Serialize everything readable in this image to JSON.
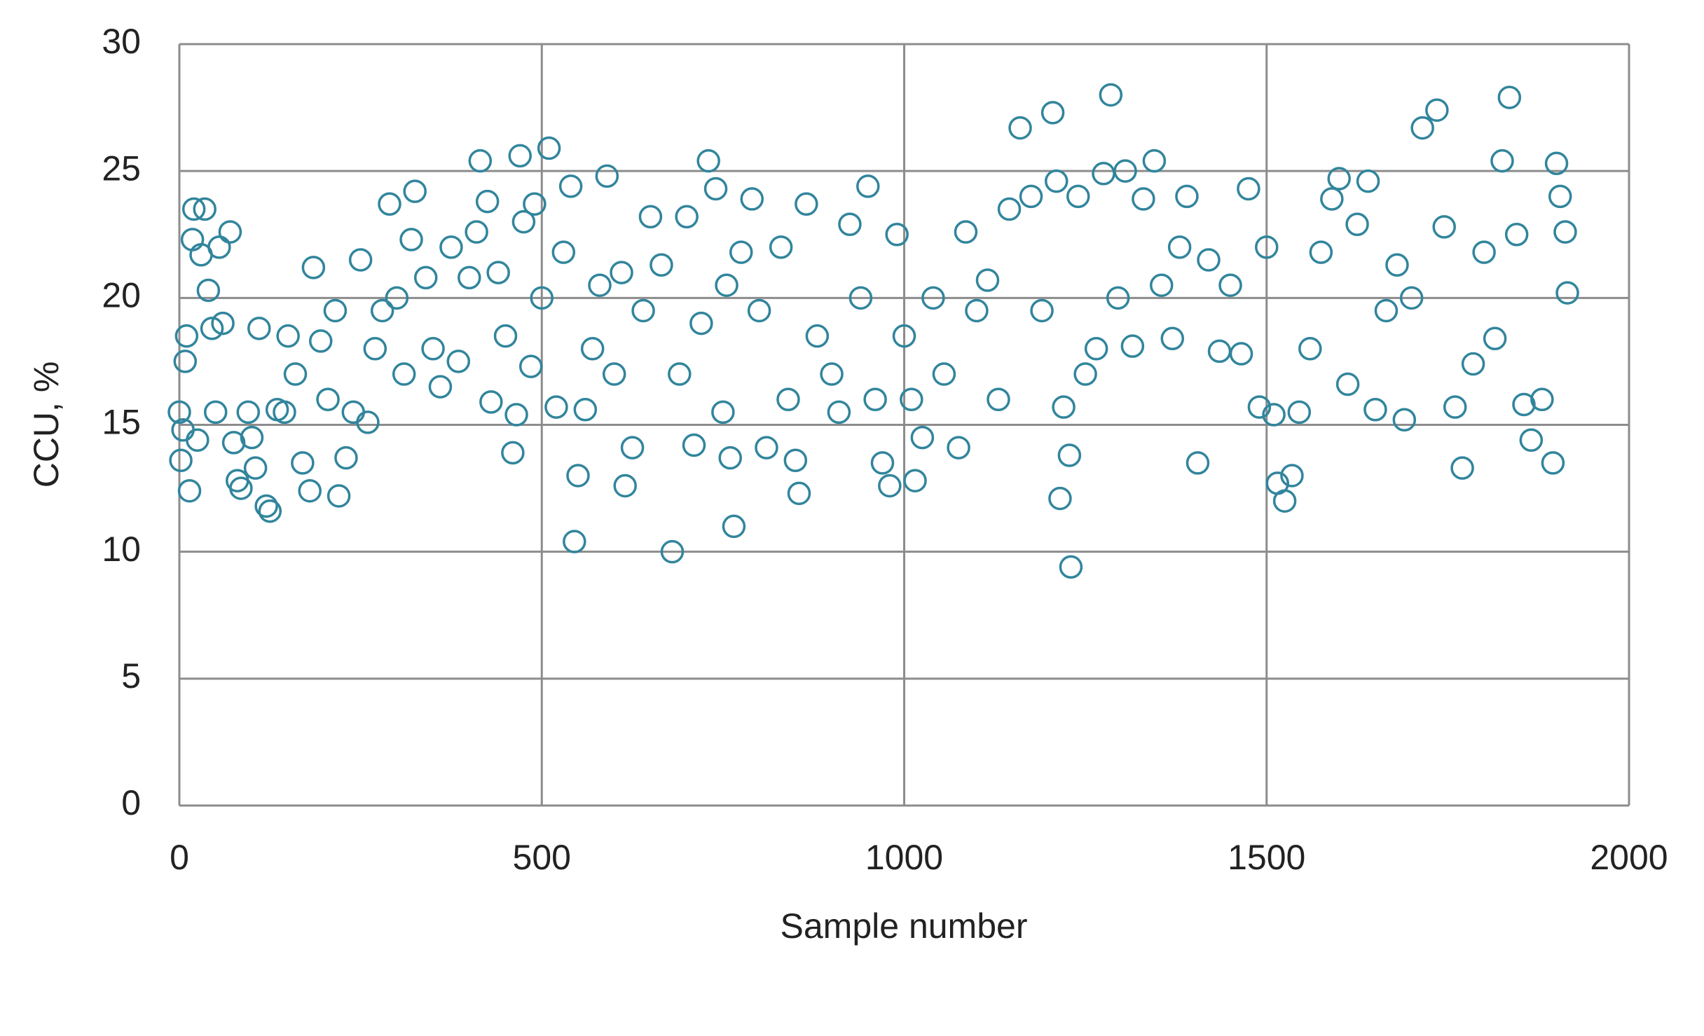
{
  "chart_data": {
    "type": "scatter",
    "x_label": "Sample number",
    "y_label": "CCU, %",
    "color": "#31859c",
    "grid": true,
    "xlim": [
      0,
      2000
    ],
    "ylim": [
      0,
      30
    ],
    "xticks": [
      0,
      500,
      1000,
      1500,
      2000
    ],
    "yticks": [
      0,
      5,
      10,
      15,
      20,
      25,
      30
    ],
    "x": [
      0,
      2,
      5,
      8,
      10,
      14,
      18,
      20,
      25,
      30,
      35,
      40,
      45,
      50,
      55,
      60,
      70,
      75,
      80,
      85,
      95,
      100,
      105,
      110,
      120,
      125,
      135,
      145,
      150,
      160,
      170,
      180,
      185,
      195,
      205,
      215,
      220,
      230,
      240,
      250,
      260,
      270,
      280,
      290,
      300,
      310,
      320,
      325,
      340,
      350,
      360,
      375,
      385,
      400,
      410,
      415,
      425,
      430,
      440,
      450,
      460,
      465,
      470,
      475,
      485,
      490,
      500,
      510,
      520,
      530,
      540,
      545,
      550,
      560,
      570,
      580,
      590,
      600,
      610,
      615,
      625,
      640,
      650,
      665,
      680,
      690,
      700,
      710,
      720,
      730,
      740,
      750,
      755,
      760,
      765,
      775,
      790,
      800,
      810,
      830,
      840,
      850,
      855,
      865,
      880,
      900,
      910,
      925,
      940,
      950,
      960,
      970,
      980,
      990,
      1000,
      1010,
      1015,
      1025,
      1040,
      1055,
      1075,
      1085,
      1100,
      1115,
      1130,
      1145,
      1160,
      1175,
      1190,
      1205,
      1210,
      1215,
      1220,
      1228,
      1230,
      1240,
      1250,
      1265,
      1275,
      1285,
      1295,
      1305,
      1315,
      1330,
      1345,
      1355,
      1370,
      1380,
      1390,
      1405,
      1420,
      1435,
      1450,
      1465,
      1475,
      1490,
      1500,
      1510,
      1515,
      1525,
      1535,
      1545,
      1560,
      1575,
      1590,
      1600,
      1612,
      1625,
      1640,
      1650,
      1665,
      1680,
      1690,
      1700,
      1715,
      1735,
      1745,
      1760,
      1770,
      1785,
      1800,
      1815,
      1825,
      1835,
      1845,
      1855,
      1865,
      1880,
      1895,
      1900,
      1905,
      1912,
      1915
    ],
    "values": [
      15.5,
      13.6,
      14.8,
      17.5,
      18.5,
      12.4,
      22.3,
      23.5,
      14.4,
      21.7,
      23.5,
      20.3,
      18.8,
      15.5,
      22,
      19,
      22.6,
      14.3,
      12.8,
      12.5,
      15.5,
      14.5,
      13.3,
      18.8,
      11.8,
      11.6,
      15.6,
      15.5,
      18.5,
      17,
      13.5,
      12.4,
      21.2,
      18.3,
      16,
      19.5,
      12.2,
      13.7,
      15.5,
      21.5,
      15.1,
      18,
      19.5,
      23.7,
      20,
      17,
      22.3,
      24.2,
      20.8,
      18,
      16.5,
      22,
      17.5,
      20.8,
      22.6,
      25.4,
      23.8,
      15.9,
      21,
      18.5,
      13.9,
      15.4,
      25.6,
      23,
      17.3,
      23.7,
      20,
      25.9,
      15.7,
      21.8,
      24.4,
      10.4,
      13,
      15.6,
      18,
      20.5,
      24.8,
      17,
      21,
      12.6,
      14.1,
      19.5,
      23.2,
      21.3,
      10,
      17,
      23.2,
      14.2,
      19,
      25.4,
      24.3,
      15.5,
      20.5,
      13.7,
      11,
      21.8,
      23.9,
      19.5,
      14.1,
      22,
      16,
      13.6,
      12.3,
      23.7,
      18.5,
      17,
      15.5,
      22.9,
      20,
      24.4,
      16,
      13.5,
      12.6,
      22.5,
      18.5,
      16,
      12.8,
      14.5,
      20,
      17,
      14.1,
      22.6,
      19.5,
      20.7,
      16,
      23.5,
      26.7,
      24,
      19.5,
      27.3,
      24.6,
      12.1,
      15.7,
      13.8,
      9.4,
      24,
      17,
      18,
      24.9,
      28,
      20,
      25,
      18.1,
      23.9,
      25.4,
      20.5,
      18.4,
      22,
      24,
      13.5,
      21.5,
      17.9,
      20.5,
      17.8,
      24.3,
      15.7,
      22,
      15.4,
      12.7,
      12,
      13,
      15.5,
      18,
      21.8,
      23.9,
      24.7,
      16.6,
      22.9,
      24.6,
      15.6,
      19.5,
      21.3,
      15.2,
      20,
      26.7,
      27.4,
      22.8,
      15.7,
      13.3,
      17.4,
      21.8,
      18.4,
      25.4,
      27.9,
      22.5,
      15.8,
      14.4,
      16,
      13.5,
      25.3,
      24,
      22.6,
      20.2
    ]
  }
}
